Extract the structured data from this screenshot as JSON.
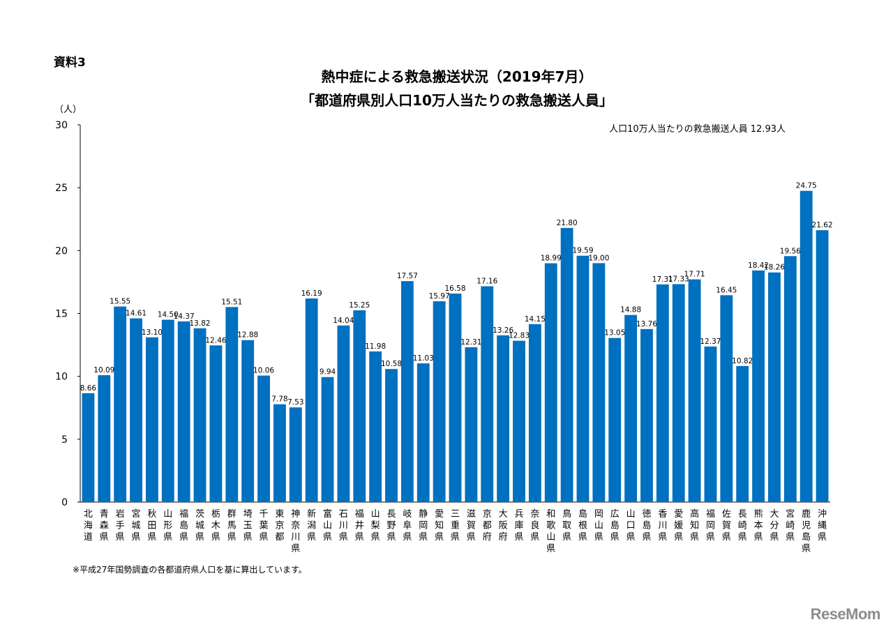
{
  "doc_label": "資料3",
  "unit_label": "（人）",
  "average_note": "人口10万人当たりの救急搬送人員 12.93人",
  "footnote": "※平成27年国勢調査の各都道府県人口を基に算出しています。",
  "watermark": "ReseMom",
  "colors": {
    "bar": "#0070C0",
    "axis": "#000000"
  },
  "chart_data": {
    "type": "bar",
    "title": "熱中症による救急搬送状況（2019年7月）",
    "subtitle": "「都道府県別人口10万人当たりの救急搬送人員」",
    "ylabel": "（人）",
    "ylim": [
      0,
      30
    ],
    "yticks": [
      0,
      5,
      10,
      15,
      20,
      25,
      30
    ],
    "grid": false,
    "categories": [
      "北海道",
      "青森県",
      "岩手県",
      "宮城県",
      "秋田県",
      "山形県",
      "福島県",
      "茨城県",
      "栃木県",
      "群馬県",
      "埼玉県",
      "千葉県",
      "東京都",
      "神奈川県",
      "新潟県",
      "富山県",
      "石川県",
      "福井県",
      "山梨県",
      "長野県",
      "岐阜県",
      "静岡県",
      "愛知県",
      "三重県",
      "滋賀県",
      "京都府",
      "大阪府",
      "兵庫県",
      "奈良県",
      "和歌山県",
      "鳥取県",
      "島根県",
      "岡山県",
      "広島県",
      "山口県",
      "徳島県",
      "香川県",
      "愛媛県",
      "高知県",
      "福岡県",
      "佐賀県",
      "長崎県",
      "熊本県",
      "大分県",
      "宮崎県",
      "鹿児島県",
      "沖縄県"
    ],
    "values": [
      8.66,
      10.09,
      15.55,
      14.61,
      13.1,
      14.5,
      14.37,
      13.82,
      12.46,
      15.51,
      12.88,
      10.06,
      7.78,
      7.53,
      16.19,
      9.94,
      14.04,
      15.25,
      11.98,
      10.58,
      17.57,
      11.03,
      15.97,
      16.58,
      12.31,
      17.16,
      13.26,
      12.83,
      14.15,
      18.99,
      21.8,
      19.59,
      19.0,
      13.05,
      14.88,
      13.76,
      17.31,
      17.33,
      17.71,
      12.37,
      16.45,
      10.82,
      18.42,
      18.26,
      19.56,
      24.75,
      21.62
    ],
    "value_labels": [
      "8.66",
      "10.09",
      "15.55",
      "14.61",
      "13.10",
      "14.50",
      "14.37",
      "13.82",
      "12.46",
      "15.51",
      "12.88",
      "10.06",
      "7.78",
      "7.53",
      "16.19",
      "9.94",
      "14.04",
      "15.25",
      "11.98",
      "10.58",
      "17.57",
      "11.03",
      "15.97",
      "16.58",
      "12.31",
      "17.16",
      "13.26",
      "12.83",
      "14.15",
      "18.99",
      "21.80",
      "19.59",
      "19.00",
      "13.05",
      "14.88",
      "13.76",
      "17.31",
      "17.33",
      "17.71",
      "12.37",
      "16.45",
      "10.82",
      "18.42",
      "18.26",
      "19.56",
      "24.75",
      "21.62"
    ]
  }
}
